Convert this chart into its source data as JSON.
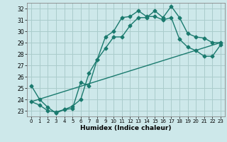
{
  "xlabel": "Humidex (Indice chaleur)",
  "bg_color": "#cde8ea",
  "grid_color": "#aacccc",
  "line_color": "#1a7a6e",
  "xlim": [
    -0.5,
    23.5
  ],
  "ylim": [
    22.5,
    32.5
  ],
  "xticks": [
    0,
    1,
    2,
    3,
    4,
    5,
    6,
    7,
    8,
    9,
    10,
    11,
    12,
    13,
    14,
    15,
    16,
    17,
    18,
    19,
    20,
    21,
    22,
    23
  ],
  "yticks": [
    23,
    24,
    25,
    26,
    27,
    28,
    29,
    30,
    31,
    32
  ],
  "series1_x": [
    0,
    1,
    2,
    3,
    4,
    5,
    6,
    7,
    8,
    9,
    10,
    11,
    12,
    13,
    14,
    15,
    16,
    17,
    18,
    19,
    20,
    21,
    22,
    23
  ],
  "series1_y": [
    25.2,
    24.0,
    23.3,
    22.8,
    23.1,
    23.2,
    25.5,
    25.2,
    27.5,
    28.5,
    29.5,
    29.5,
    30.5,
    31.2,
    31.2,
    31.8,
    31.2,
    32.2,
    31.2,
    29.8,
    29.5,
    29.4,
    29.0,
    29.0
  ],
  "series2_x": [
    0,
    1,
    2,
    3,
    4,
    5,
    6,
    7,
    8,
    9,
    10,
    11,
    12,
    13,
    14,
    15,
    16,
    17,
    18,
    19,
    20,
    21,
    22,
    23
  ],
  "series2_y": [
    23.8,
    23.5,
    23.0,
    22.9,
    23.1,
    23.4,
    24.0,
    26.3,
    27.5,
    29.5,
    30.0,
    31.2,
    31.3,
    31.8,
    31.3,
    31.3,
    31.0,
    31.2,
    29.3,
    28.6,
    28.3,
    27.8,
    27.8,
    28.8
  ],
  "series3_x": [
    0,
    23
  ],
  "series3_y": [
    23.8,
    29.0
  ],
  "marker_style": "D",
  "marker_size": 2.5,
  "line_width": 1.0
}
